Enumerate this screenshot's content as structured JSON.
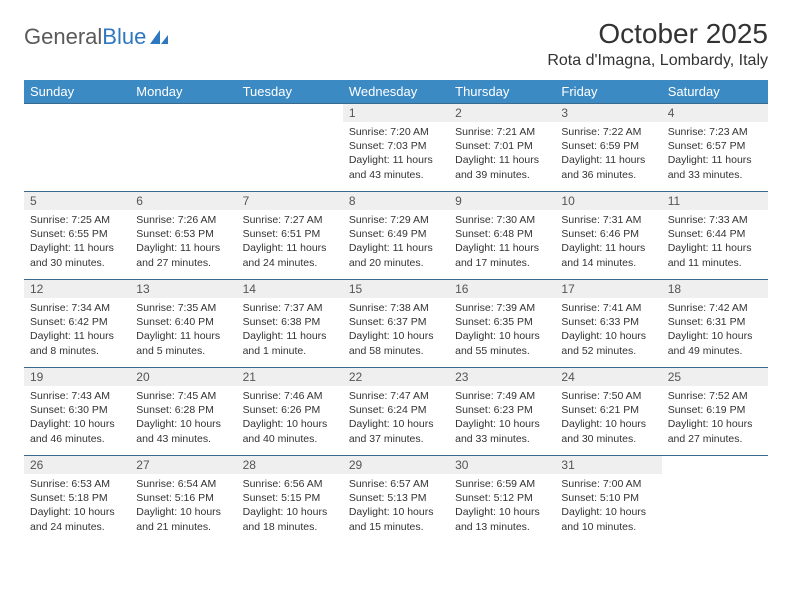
{
  "logo": {
    "word1": "General",
    "word2": "Blue",
    "shape_color": "#2f78bf"
  },
  "title": "October 2025",
  "location": "Rota d'Imagna, Lombardy, Italy",
  "header_bg": "#3b8ac4",
  "header_fg": "#ffffff",
  "daynum_bg": "#efefef",
  "border_color": "#3b6a8f",
  "weekdays": [
    "Sunday",
    "Monday",
    "Tuesday",
    "Wednesday",
    "Thursday",
    "Friday",
    "Saturday"
  ],
  "first_weekday_index": 3,
  "days": [
    {
      "n": 1,
      "sr": "7:20 AM",
      "ss": "7:03 PM",
      "dl": "11 hours and 43 minutes."
    },
    {
      "n": 2,
      "sr": "7:21 AM",
      "ss": "7:01 PM",
      "dl": "11 hours and 39 minutes."
    },
    {
      "n": 3,
      "sr": "7:22 AM",
      "ss": "6:59 PM",
      "dl": "11 hours and 36 minutes."
    },
    {
      "n": 4,
      "sr": "7:23 AM",
      "ss": "6:57 PM",
      "dl": "11 hours and 33 minutes."
    },
    {
      "n": 5,
      "sr": "7:25 AM",
      "ss": "6:55 PM",
      "dl": "11 hours and 30 minutes."
    },
    {
      "n": 6,
      "sr": "7:26 AM",
      "ss": "6:53 PM",
      "dl": "11 hours and 27 minutes."
    },
    {
      "n": 7,
      "sr": "7:27 AM",
      "ss": "6:51 PM",
      "dl": "11 hours and 24 minutes."
    },
    {
      "n": 8,
      "sr": "7:29 AM",
      "ss": "6:49 PM",
      "dl": "11 hours and 20 minutes."
    },
    {
      "n": 9,
      "sr": "7:30 AM",
      "ss": "6:48 PM",
      "dl": "11 hours and 17 minutes."
    },
    {
      "n": 10,
      "sr": "7:31 AM",
      "ss": "6:46 PM",
      "dl": "11 hours and 14 minutes."
    },
    {
      "n": 11,
      "sr": "7:33 AM",
      "ss": "6:44 PM",
      "dl": "11 hours and 11 minutes."
    },
    {
      "n": 12,
      "sr": "7:34 AM",
      "ss": "6:42 PM",
      "dl": "11 hours and 8 minutes."
    },
    {
      "n": 13,
      "sr": "7:35 AM",
      "ss": "6:40 PM",
      "dl": "11 hours and 5 minutes."
    },
    {
      "n": 14,
      "sr": "7:37 AM",
      "ss": "6:38 PM",
      "dl": "11 hours and 1 minute."
    },
    {
      "n": 15,
      "sr": "7:38 AM",
      "ss": "6:37 PM",
      "dl": "10 hours and 58 minutes."
    },
    {
      "n": 16,
      "sr": "7:39 AM",
      "ss": "6:35 PM",
      "dl": "10 hours and 55 minutes."
    },
    {
      "n": 17,
      "sr": "7:41 AM",
      "ss": "6:33 PM",
      "dl": "10 hours and 52 minutes."
    },
    {
      "n": 18,
      "sr": "7:42 AM",
      "ss": "6:31 PM",
      "dl": "10 hours and 49 minutes."
    },
    {
      "n": 19,
      "sr": "7:43 AM",
      "ss": "6:30 PM",
      "dl": "10 hours and 46 minutes."
    },
    {
      "n": 20,
      "sr": "7:45 AM",
      "ss": "6:28 PM",
      "dl": "10 hours and 43 minutes."
    },
    {
      "n": 21,
      "sr": "7:46 AM",
      "ss": "6:26 PM",
      "dl": "10 hours and 40 minutes."
    },
    {
      "n": 22,
      "sr": "7:47 AM",
      "ss": "6:24 PM",
      "dl": "10 hours and 37 minutes."
    },
    {
      "n": 23,
      "sr": "7:49 AM",
      "ss": "6:23 PM",
      "dl": "10 hours and 33 minutes."
    },
    {
      "n": 24,
      "sr": "7:50 AM",
      "ss": "6:21 PM",
      "dl": "10 hours and 30 minutes."
    },
    {
      "n": 25,
      "sr": "7:52 AM",
      "ss": "6:19 PM",
      "dl": "10 hours and 27 minutes."
    },
    {
      "n": 26,
      "sr": "6:53 AM",
      "ss": "5:18 PM",
      "dl": "10 hours and 24 minutes."
    },
    {
      "n": 27,
      "sr": "6:54 AM",
      "ss": "5:16 PM",
      "dl": "10 hours and 21 minutes."
    },
    {
      "n": 28,
      "sr": "6:56 AM",
      "ss": "5:15 PM",
      "dl": "10 hours and 18 minutes."
    },
    {
      "n": 29,
      "sr": "6:57 AM",
      "ss": "5:13 PM",
      "dl": "10 hours and 15 minutes."
    },
    {
      "n": 30,
      "sr": "6:59 AM",
      "ss": "5:12 PM",
      "dl": "10 hours and 13 minutes."
    },
    {
      "n": 31,
      "sr": "7:00 AM",
      "ss": "5:10 PM",
      "dl": "10 hours and 10 minutes."
    }
  ],
  "labels": {
    "sunrise": "Sunrise:",
    "sunset": "Sunset:",
    "daylight": "Daylight:"
  }
}
